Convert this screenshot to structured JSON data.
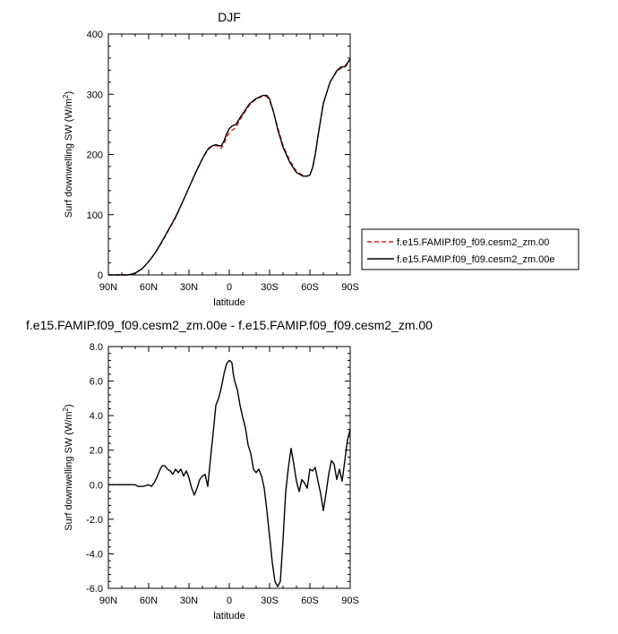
{
  "chart_data": [
    {
      "type": "line",
      "title": "DJF",
      "xlabel": "latitude",
      "ylabel": "Surf downwelling SW (W/m²)",
      "ylabel_base": "Surf downwelling SW (W/m",
      "ylabel_sup": "2",
      "ylabel_tail": ")",
      "xlim": [
        90,
        -90
      ],
      "ylim": [
        0,
        400
      ],
      "x_ticks": [
        90,
        60,
        30,
        0,
        -30,
        -60,
        -90
      ],
      "x_tick_labels": [
        "90N",
        "60N",
        "30N",
        "0",
        "30S",
        "60S",
        "90S"
      ],
      "y_ticks": [
        0,
        100,
        200,
        300,
        400
      ],
      "y_tick_labels": [
        "0",
        "100",
        "200",
        "300",
        "400"
      ],
      "grid": false,
      "legend_position": "right",
      "series": [
        {
          "name": "f.e15.FAMIP.f09_f09.cesm2_zm.00",
          "color": "#d62020",
          "dash": "dashed",
          "x": [
            90,
            85,
            80,
            76,
            73,
            70,
            65,
            60,
            55,
            50,
            45,
            40,
            35,
            30,
            25,
            20,
            17,
            15,
            12,
            10,
            8,
            6,
            4,
            2,
            0,
            -2,
            -5,
            -8,
            -12,
            -15,
            -20,
            -25,
            -28,
            -30,
            -33,
            -36,
            -40,
            -45,
            -50,
            -55,
            -58,
            -60,
            -62,
            -64,
            -66,
            -70,
            -75,
            -80,
            -83,
            -86,
            -88,
            -90
          ],
          "y": [
            0,
            0,
            0,
            0,
            1,
            3,
            10,
            22,
            37,
            55,
            75,
            95,
            120,
            145,
            170,
            193,
            204,
            210,
            214,
            215,
            213,
            210,
            218,
            228,
            236,
            240,
            245,
            258,
            272,
            282,
            292,
            297,
            296,
            290,
            270,
            245,
            215,
            190,
            172,
            165,
            164,
            166,
            178,
            200,
            230,
            285,
            320,
            338,
            343,
            345,
            350,
            356
          ]
        },
        {
          "name": "f.e15.FAMIP.f09_f09.cesm2_zm.00e",
          "color": "#000000",
          "dash": "solid",
          "x": [
            90,
            85,
            80,
            76,
            73,
            70,
            65,
            60,
            55,
            50,
            45,
            40,
            35,
            30,
            25,
            20,
            17,
            15,
            12,
            10,
            8,
            6,
            4,
            2,
            0,
            -2,
            -5,
            -8,
            -12,
            -15,
            -20,
            -25,
            -28,
            -30,
            -33,
            -36,
            -40,
            -45,
            -50,
            -55,
            -58,
            -60,
            -62,
            -64,
            -66,
            -70,
            -75,
            -80,
            -83,
            -86,
            -88,
            -90
          ],
          "y": [
            0,
            0,
            0,
            0,
            1,
            3,
            10,
            22,
            37,
            56,
            76,
            96,
            120,
            145,
            170,
            193,
            205,
            211,
            215,
            216,
            215,
            214,
            222,
            234,
            243,
            247,
            250,
            261,
            274,
            284,
            293,
            298,
            298,
            292,
            270,
            242,
            212,
            187,
            170,
            164,
            164,
            166,
            178,
            200,
            230,
            285,
            320,
            339,
            345,
            346,
            352,
            359
          ]
        }
      ]
    },
    {
      "type": "line",
      "title": "f.e15.FAMIP.f09_f09.cesm2_zm.00e - f.e15.FAMIP.f09_f09.cesm2_zm.00",
      "xlabel": "latitude",
      "ylabel": "Surf downwelling SW (W/m²)",
      "ylabel_base": "Surf downwelling SW (W/m",
      "ylabel_sup": "2",
      "ylabel_tail": ")",
      "xlim": [
        90,
        -90
      ],
      "ylim": [
        -6,
        8
      ],
      "x_ticks": [
        90,
        60,
        30,
        0,
        -30,
        -60,
        -90
      ],
      "x_tick_labels": [
        "90N",
        "60N",
        "30N",
        "0",
        "30S",
        "60S",
        "90S"
      ],
      "y_ticks": [
        -6,
        -4,
        -2,
        0,
        2,
        4,
        6,
        8
      ],
      "y_tick_labels": [
        "-6.0",
        "-4.0",
        "-2.0",
        "0.0",
        "2.0",
        "4.0",
        "6.0",
        "8.0"
      ],
      "grid": false,
      "series": [
        {
          "color": "#000000",
          "dash": "solid",
          "x": [
            90,
            85,
            80,
            75,
            72,
            70,
            68,
            66,
            64,
            62,
            60,
            58,
            56,
            54,
            52,
            50,
            48,
            46,
            44,
            42,
            40,
            38,
            36,
            34,
            32,
            30,
            28,
            26,
            24,
            22,
            20,
            18,
            16,
            14,
            12,
            10,
            8,
            6,
            4,
            2,
            0,
            -1,
            -2,
            -3,
            -4,
            -6,
            -8,
            -10,
            -12,
            -14,
            -16,
            -18,
            -20,
            -22,
            -24,
            -26,
            -28,
            -30,
            -32,
            -34,
            -36,
            -38,
            -40,
            -42,
            -44,
            -46,
            -48,
            -50,
            -52,
            -54,
            -56,
            -58,
            -60,
            -62,
            -64,
            -66,
            -68,
            -70,
            -72,
            -74,
            -76,
            -78,
            -80,
            -82,
            -84,
            -86,
            -88,
            -90
          ],
          "y": [
            0,
            0,
            0,
            0,
            0,
            0,
            -0.1,
            -0.1,
            -0.1,
            -0.05,
            0,
            -0.1,
            0.1,
            0.4,
            0.8,
            1.1,
            1.1,
            0.9,
            0.8,
            0.6,
            0.9,
            0.7,
            0.9,
            0.5,
            0.8,
            0.4,
            -0.2,
            -0.6,
            -0.2,
            0.3,
            0.5,
            0.6,
            -0.1,
            1.5,
            3.0,
            4.6,
            5.0,
            5.6,
            6.4,
            7.0,
            7.2,
            7.15,
            7.05,
            6.4,
            6.0,
            5.5,
            4.6,
            3.9,
            3.3,
            2.3,
            1.8,
            0.9,
            0.7,
            0.9,
            0.5,
            -0.2,
            -1.5,
            -3.0,
            -4.5,
            -5.6,
            -5.9,
            -5.6,
            -3.2,
            -0.4,
            1.0,
            2.1,
            1.2,
            0.2,
            -0.4,
            0.3,
            0.1,
            -0.2,
            0.9,
            0.8,
            1.0,
            0.2,
            -0.5,
            -1.5,
            -0.5,
            0.6,
            1.4,
            1.2,
            0.3,
            0.9,
            0.2,
            1.4,
            2.6,
            3.2
          ]
        }
      ]
    }
  ]
}
